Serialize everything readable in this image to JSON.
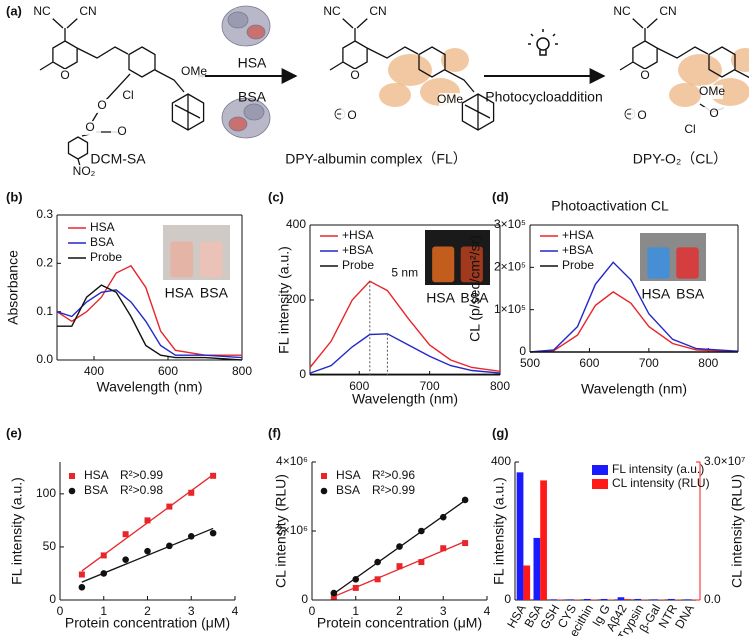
{
  "scheme": {
    "panel": "(a)",
    "arrow1_top": "HSA",
    "arrow1_bottom": "BSA",
    "arrow2": "Photocycloaddition",
    "structures": [
      {
        "name": "DCM-SA",
        "atoms": [
          "NC",
          "CN",
          "O",
          "Cl",
          "OMe",
          "O",
          "O",
          "O",
          "NO₂"
        ]
      },
      {
        "name": "DPY-albumin complex（FL）",
        "atoms": [
          "NC",
          "CN",
          "O",
          "O",
          "OMe"
        ]
      },
      {
        "name": "DPY-O₂（CL）",
        "atoms": [
          "NC",
          "CN",
          "O",
          "O",
          "OMe",
          "O",
          "Cl"
        ]
      }
    ]
  },
  "chart_data": [
    {
      "type": "line",
      "panel": "(b)",
      "xlabel": "Wavelength (nm)",
      "ylabel": "Absorbance",
      "x": [
        300,
        340,
        380,
        420,
        460,
        500,
        540,
        580,
        620,
        700,
        800
      ],
      "series": [
        {
          "name": "HSA",
          "color": "#e8262a",
          "values": [
            0.1,
            0.08,
            0.1,
            0.13,
            0.18,
            0.195,
            0.15,
            0.06,
            0.02,
            0.01,
            0.01
          ]
        },
        {
          "name": "BSA",
          "color": "#2427c8",
          "values": [
            0.1,
            0.09,
            0.12,
            0.14,
            0.145,
            0.12,
            0.08,
            0.03,
            0.01,
            0.01,
            0.005
          ]
        },
        {
          "name": "Probe",
          "color": "#111111",
          "values": [
            0.07,
            0.07,
            0.13,
            0.155,
            0.14,
            0.09,
            0.03,
            0.01,
            0.005,
            0.005,
            0.0
          ]
        }
      ],
      "xlim": [
        300,
        800
      ],
      "xticks": [
        400,
        600,
        800
      ],
      "ylim": [
        0,
        0.3
      ],
      "yticks": [
        {
          "value": 0,
          "label": "0.0"
        },
        0.1,
        0.2,
        0.3
      ],
      "inset_labels": [
        "HSA",
        "BSA"
      ]
    },
    {
      "type": "line",
      "panel": "(c)",
      "xlabel": "Wavelength (nm)",
      "ylabel": "FL intensity (a.u.)",
      "x": [
        530,
        560,
        590,
        615,
        640,
        670,
        700,
        730,
        760,
        800
      ],
      "series": [
        {
          "name": "+HSA",
          "color": "#e8262a",
          "values": [
            20,
            90,
            200,
            250,
            225,
            150,
            80,
            40,
            20,
            10
          ]
        },
        {
          "name": "+BSA",
          "color": "#2427c8",
          "values": [
            5,
            25,
            75,
            108,
            110,
            80,
            50,
            25,
            12,
            5
          ]
        },
        {
          "name": "Probe",
          "color": "#111111",
          "values": [
            2,
            2,
            2,
            2,
            2,
            2,
            2,
            2,
            2,
            2
          ]
        }
      ],
      "xlim": [
        530,
        800
      ],
      "xticks": [
        600,
        700,
        800
      ],
      "ylim": [
        0,
        400
      ],
      "yticks": [
        0,
        200,
        400
      ],
      "annotation": "5 nm",
      "inset_labels": [
        "HSA",
        "BSA"
      ]
    },
    {
      "type": "line",
      "panel": "(d)",
      "title": "Photoactivation CL",
      "xlabel": "Wavelength (nm)",
      "ylabel": "CL (p/sec/cm²/sr)",
      "x": [
        500,
        540,
        580,
        610,
        640,
        670,
        700,
        740,
        780,
        850
      ],
      "series": [
        {
          "name": "+HSA",
          "color": "#e8262a",
          "values": [
            0,
            3000,
            40000,
            110000,
            142000,
            115000,
            60000,
            20000,
            5000,
            1000
          ]
        },
        {
          "name": "+BSA",
          "color": "#2427c8",
          "values": [
            0,
            5000,
            60000,
            160000,
            212000,
            170000,
            90000,
            30000,
            8000,
            2000
          ]
        },
        {
          "name": "Probe",
          "color": "#111111",
          "values": [
            0,
            0,
            0,
            0,
            0,
            0,
            0,
            0,
            0,
            0
          ]
        }
      ],
      "xlim": [
        500,
        850
      ],
      "xticks": [
        500,
        600,
        700,
        800
      ],
      "ylim": [
        0,
        300000
      ],
      "yticks": [
        0,
        {
          "value": 100000,
          "label": "1×10⁵"
        },
        {
          "value": 200000,
          "label": "2×10⁵"
        },
        {
          "value": 300000,
          "label": "3×10⁵"
        }
      ],
      "inset_labels": [
        "HSA",
        "BSA"
      ]
    },
    {
      "type": "scatter",
      "panel": "(e)",
      "xlabel": "Protein concentration (μM)",
      "ylabel": "FL intensity (a.u.)",
      "x": [
        0.5,
        1.0,
        1.5,
        2.0,
        2.5,
        3.0,
        3.5
      ],
      "series": [
        {
          "name": "HSA",
          "fit_label": "R²>0.99",
          "marker": "square",
          "color": "#e8262a",
          "values": [
            24,
            42,
            62,
            75,
            88,
            101,
            117
          ]
        },
        {
          "name": "BSA",
          "fit_label": "R²>0.98",
          "marker": "circle",
          "color": "#111111",
          "values": [
            12,
            25,
            38,
            46,
            51,
            60,
            63
          ]
        }
      ],
      "xlim": [
        0,
        4
      ],
      "xticks": [
        0,
        1,
        2,
        3,
        4
      ],
      "ylim": [
        0,
        130
      ],
      "yticks": [
        0,
        50,
        100
      ]
    },
    {
      "type": "scatter",
      "panel": "(f)",
      "xlabel": "Protein concentration (μM)",
      "ylabel": "CL intensity (RLU)",
      "x": [
        0.5,
        1.0,
        1.5,
        2.0,
        2.5,
        3.0,
        3.5
      ],
      "series": [
        {
          "name": "HSA",
          "fit_label": "R²>0.96",
          "marker": "square",
          "color": "#e8262a",
          "values": [
            100000,
            350000,
            600000,
            980000,
            1100000,
            1500000,
            1650000
          ]
        },
        {
          "name": "BSA",
          "fit_label": "R²>0.99",
          "marker": "circle",
          "color": "#111111",
          "values": [
            200000,
            600000,
            1100000,
            1550000,
            2000000,
            2400000,
            2900000
          ]
        }
      ],
      "xlim": [
        0,
        4
      ],
      "xticks": [
        0,
        1,
        2,
        3,
        4
      ],
      "ylim": [
        0,
        4000000
      ],
      "yticks": [
        0,
        {
          "value": 2000000,
          "label": "2×10⁶"
        },
        {
          "value": 4000000,
          "label": "4×10⁶"
        }
      ]
    },
    {
      "type": "bar",
      "panel": "(g)",
      "ylabel": "FL intensity (a.u.)",
      "y2label": "CL intensity (RLU)",
      "categories": [
        "HSA",
        "BSA",
        "GSH",
        "CYS",
        "Lecithin",
        "Ig G",
        "Aβ42",
        "Trypsin",
        "β-Gal",
        "NTR",
        "DNA"
      ],
      "series": [
        {
          "name": "FL intensity (a.u.)",
          "color": "#1a1aff",
          "values": [
            370,
            180,
            2,
            2,
            3,
            3,
            8,
            3,
            2,
            3,
            2
          ]
        },
        {
          "name": "CL intensity (RLU)",
          "color": "#ff1a1a",
          "axis": "y2",
          "values": [
            7500000,
            26000000,
            100000,
            100000,
            100000,
            100000,
            200000,
            100000,
            100000,
            100000,
            100000
          ]
        }
      ],
      "ylim": [
        0,
        400
      ],
      "yticks": [
        0,
        400
      ],
      "y2lim": [
        0,
        30000000
      ],
      "y2ticks": [
        {
          "value": 0,
          "label": "0.0"
        },
        {
          "value": 30000000,
          "label": "3.0×10⁷"
        }
      ]
    }
  ]
}
